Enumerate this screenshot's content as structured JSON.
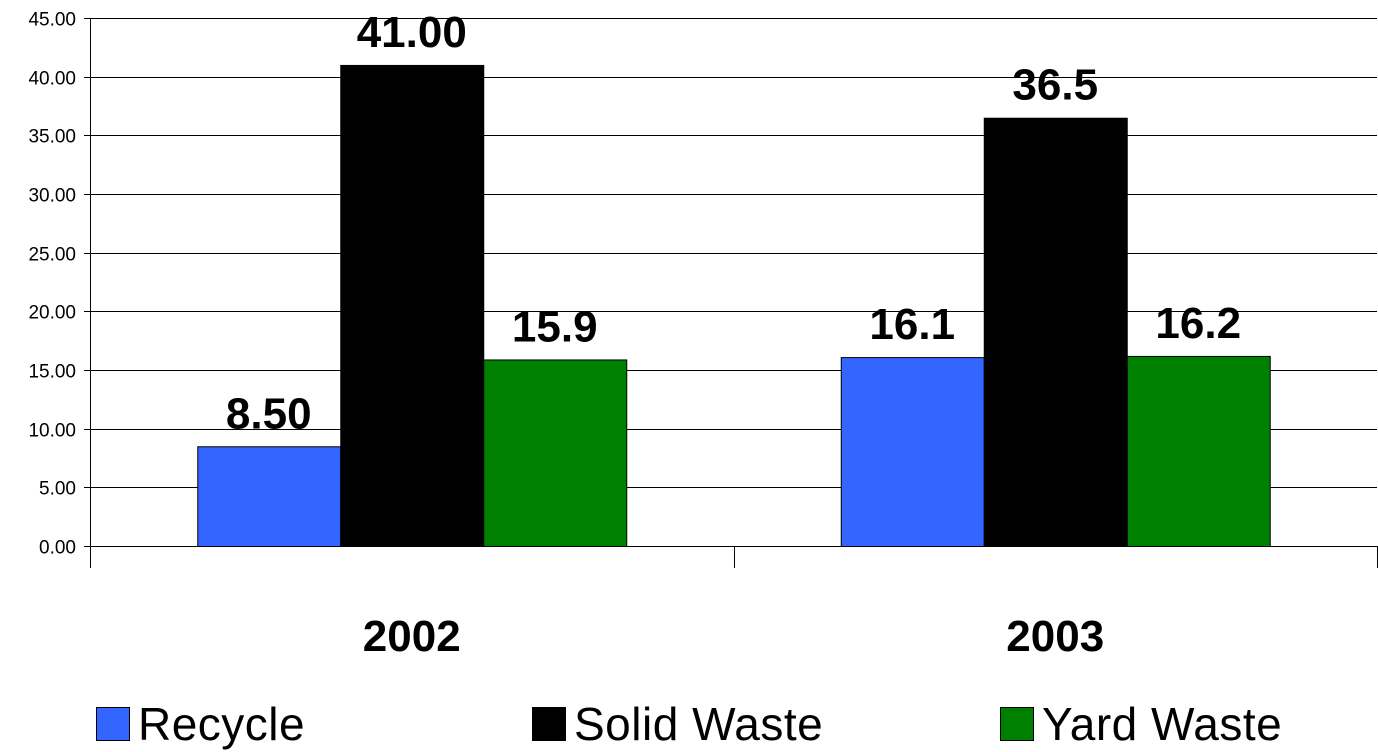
{
  "chart_data": {
    "type": "bar",
    "categories": [
      "2002",
      "2003"
    ],
    "series": [
      {
        "name": "Recycle",
        "values": [
          8.5,
          16.1
        ],
        "labels": [
          "8.50",
          "16.1"
        ],
        "color": "#3366ff"
      },
      {
        "name": "Solid Waste",
        "values": [
          41.0,
          36.5
        ],
        "labels": [
          "41.00",
          "36.5"
        ],
        "color": "#000000"
      },
      {
        "name": "Yard Waste",
        "values": [
          15.9,
          16.2
        ],
        "labels": [
          "15.9",
          "16.2"
        ],
        "color": "#008000"
      }
    ],
    "yticks": [
      "0.00",
      "5.00",
      "10.00",
      "15.00",
      "20.00",
      "25.00",
      "30.00",
      "35.00",
      "40.00",
      "45.00"
    ],
    "ylim": [
      0,
      45
    ],
    "grid": true,
    "legend": "bottom"
  }
}
